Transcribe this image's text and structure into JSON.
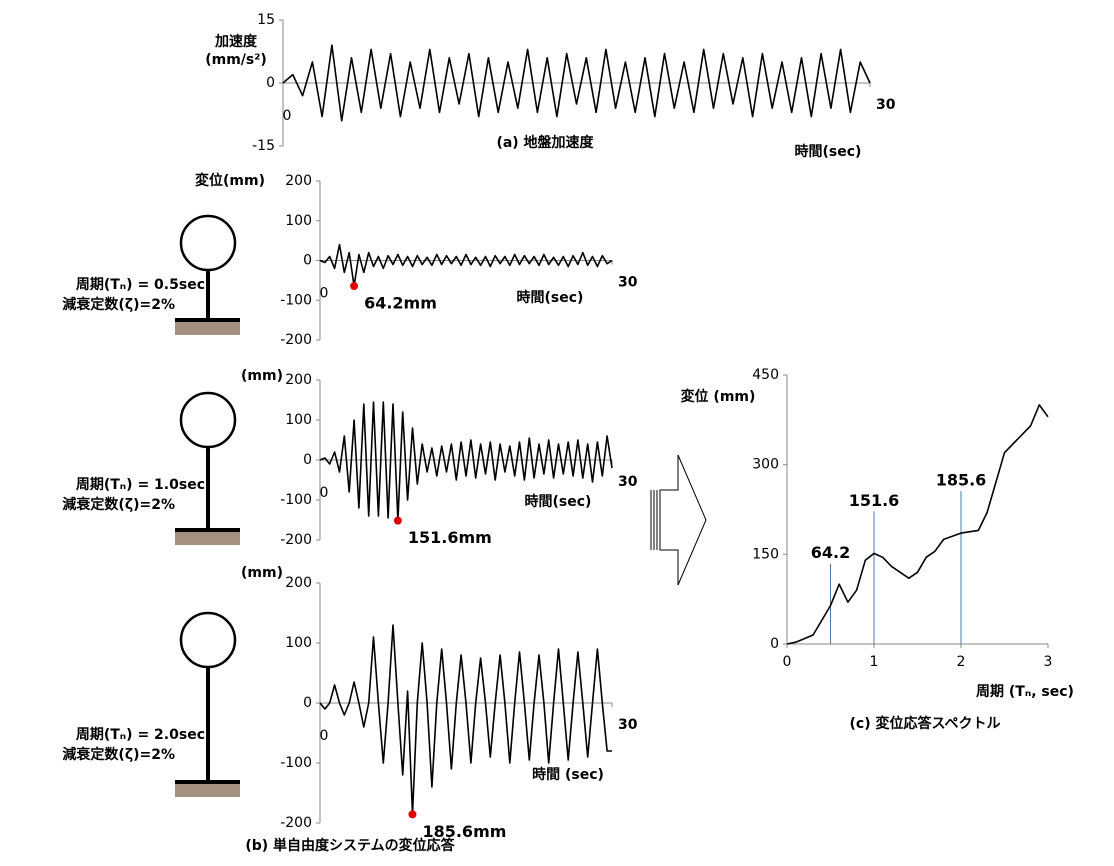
{
  "chart_data": [
    {
      "type": "line",
      "title": "(a) 地盤加速度",
      "y_label": [
        "加速度",
        "(mm/s²)"
      ],
      "x_label": "時間(sec)",
      "color": "#000000",
      "xlim": [
        0,
        30
      ],
      "xticks": [
        0,
        30
      ],
      "ylim": [
        -15,
        15
      ],
      "yticks": [
        15,
        0,
        -15
      ],
      "x": [
        0,
        0.5,
        1,
        1.5,
        2,
        2.5,
        3,
        3.5,
        4,
        4.5,
        5,
        5.5,
        6,
        6.5,
        7,
        7.5,
        8,
        8.5,
        9,
        9.5,
        10,
        10.5,
        11,
        11.5,
        12,
        12.5,
        13,
        13.5,
        14,
        14.5,
        15,
        15.5,
        16,
        16.5,
        17,
        17.5,
        18,
        18.5,
        19,
        19.5,
        20,
        20.5,
        21,
        21.5,
        22,
        22.5,
        23,
        23.5,
        24,
        24.5,
        25,
        25.5,
        26,
        26.5,
        27,
        27.5,
        28,
        28.5,
        29,
        29.5,
        30
      ],
      "values": [
        0,
        2,
        -3,
        5,
        -8,
        9,
        -9,
        6,
        -7,
        8,
        -6,
        7,
        -8,
        5,
        -6,
        8,
        -7,
        6,
        -5,
        7,
        -8,
        6,
        -7,
        5,
        -6,
        8,
        -7,
        6,
        -8,
        7,
        -5,
        6,
        -7,
        8,
        -6,
        5,
        -7,
        6,
        -8,
        7,
        -6,
        5,
        -7,
        8,
        -6,
        7,
        -5,
        6,
        -8,
        7,
        -6,
        5,
        -7,
        6,
        -8,
        7,
        -6,
        8,
        -7,
        5,
        0
      ]
    },
    {
      "type": "line",
      "y_label": "変位(mm)",
      "x_label": "時間(sec)",
      "color": "#000000",
      "xlim": [
        0,
        30
      ],
      "xticks": [
        0,
        30
      ],
      "ylim": [
        -200,
        200
      ],
      "yticks": [
        200,
        100,
        0,
        -100,
        -200
      ],
      "x": [
        0,
        0.5,
        1,
        1.5,
        2,
        2.5,
        3,
        3.5,
        4,
        4.5,
        5,
        5.5,
        6,
        6.5,
        7,
        7.5,
        8,
        8.5,
        9,
        9.5,
        10,
        10.5,
        11,
        11.5,
        12,
        12.5,
        13,
        13.5,
        14,
        14.5,
        15,
        15.5,
        16,
        16.5,
        17,
        17.5,
        18,
        18.5,
        19,
        19.5,
        20,
        20.5,
        21,
        21.5,
        22,
        22.5,
        23,
        23.5,
        24,
        24.5,
        25,
        25.5,
        26,
        26.5,
        27,
        27.5,
        28,
        28.5,
        29,
        29.5,
        30
      ],
      "values": [
        0,
        -5,
        10,
        -20,
        40,
        -30,
        20,
        -64.2,
        15,
        -30,
        20,
        -15,
        10,
        -20,
        12,
        -10,
        15,
        -12,
        10,
        -15,
        12,
        -10,
        8,
        -12,
        15,
        -10,
        12,
        -8,
        10,
        -12,
        15,
        -10,
        8,
        -12,
        10,
        -15,
        12,
        -8,
        10,
        -12,
        15,
        -10,
        12,
        -8,
        10,
        -12,
        15,
        -10,
        8,
        -12,
        10,
        -15,
        12,
        -10,
        20,
        -12,
        10,
        -15,
        12,
        -8,
        0
      ],
      "peak": {
        "x": 3.5,
        "y": -64.2,
        "label": "64.2mm",
        "color": "#e00000"
      },
      "system": {
        "period": "周期(Tₙ) = 0.5sec",
        "damping": "減衰定数(ζ)=2%"
      }
    },
    {
      "type": "line",
      "y_label": "(mm)",
      "x_label": "時間(sec)",
      "color": "#000000",
      "xlim": [
        0,
        30
      ],
      "xticks": [
        0,
        30
      ],
      "ylim": [
        -200,
        200
      ],
      "yticks": [
        200,
        100,
        0,
        -100,
        -200
      ],
      "x": [
        0,
        0.5,
        1,
        1.5,
        2,
        2.5,
        3,
        3.5,
        4,
        4.5,
        5,
        5.5,
        6,
        6.5,
        7,
        7.5,
        8,
        8.5,
        9,
        9.5,
        10,
        10.5,
        11,
        11.5,
        12,
        12.5,
        13,
        13.5,
        14,
        14.5,
        15,
        15.5,
        16,
        16.5,
        17,
        17.5,
        18,
        18.5,
        19,
        19.5,
        20,
        20.5,
        21,
        21.5,
        22,
        22.5,
        23,
        23.5,
        24,
        24.5,
        25,
        25.5,
        26,
        26.5,
        27,
        27.5,
        28,
        28.5,
        29,
        29.5,
        30
      ],
      "values": [
        0,
        5,
        -10,
        20,
        -30,
        60,
        -80,
        100,
        -120,
        140,
        -140,
        145,
        -140,
        145,
        -145,
        140,
        -151.6,
        120,
        -100,
        80,
        -60,
        40,
        -30,
        30,
        -40,
        35,
        -30,
        40,
        -50,
        45,
        -40,
        50,
        -45,
        40,
        -35,
        45,
        -50,
        40,
        -30,
        35,
        -40,
        45,
        -50,
        55,
        -45,
        40,
        -35,
        50,
        -45,
        40,
        -35,
        45,
        -40,
        50,
        -45,
        40,
        -55,
        45,
        -40,
        60,
        -20
      ],
      "peak": {
        "x": 8,
        "y": -151.6,
        "label": "151.6mm",
        "color": "#e00000"
      },
      "system": {
        "period": "周期(Tₙ) = 1.0sec",
        "damping": "減衰定数(ζ)=2%"
      }
    },
    {
      "type": "line",
      "y_label": "(mm)",
      "x_label": "時間 (sec)",
      "color": "#000000",
      "caption": "(b) 単自由度システムの変位応答",
      "xlim": [
        0,
        30
      ],
      "xticks": [
        0,
        30
      ],
      "ylim": [
        -200,
        200
      ],
      "yticks": [
        200,
        100,
        0,
        -100,
        -200
      ],
      "x": [
        0,
        0.5,
        1,
        1.5,
        2,
        2.5,
        3,
        3.5,
        4,
        4.5,
        5,
        5.5,
        6,
        6.5,
        7,
        7.5,
        8,
        8.5,
        9,
        9.5,
        10,
        10.5,
        11,
        11.5,
        12,
        12.5,
        13,
        13.5,
        14,
        14.5,
        15,
        15.5,
        16,
        16.5,
        17,
        17.5,
        18,
        18.5,
        19,
        19.5,
        20,
        20.5,
        21,
        21.5,
        22,
        22.5,
        23,
        23.5,
        24,
        24.5,
        25,
        25.5,
        26,
        26.5,
        27,
        27.5,
        28,
        28.5,
        29,
        29.5,
        30
      ],
      "values": [
        0,
        -10,
        0,
        30,
        0,
        -20,
        0,
        35,
        0,
        -40,
        0,
        110,
        0,
        -100,
        0,
        130,
        0,
        -120,
        20,
        -185.6,
        0,
        100,
        0,
        -140,
        0,
        90,
        0,
        -110,
        0,
        80,
        0,
        -100,
        0,
        75,
        0,
        -90,
        0,
        80,
        0,
        -100,
        0,
        85,
        0,
        -95,
        0,
        80,
        0,
        -100,
        0,
        90,
        0,
        -95,
        0,
        85,
        0,
        -90,
        0,
        90,
        0,
        -80,
        -80
      ],
      "peak": {
        "x": 9.5,
        "y": -185.6,
        "label": "185.6mm",
        "color": "#e00000"
      },
      "system": {
        "period": "周期(Tₙ) = 2.0sec",
        "damping": "減衰定数(ζ)=2%"
      }
    },
    {
      "type": "line",
      "title": "(c) 変位応答スペクトル",
      "y_label": "変位 (mm)",
      "x_label": "周期 (Tₙ, sec)",
      "color": "#000000",
      "xlim": [
        0,
        3
      ],
      "xticks": [
        0,
        1,
        2,
        3
      ],
      "ylim": [
        0,
        450
      ],
      "yticks": [
        0,
        150,
        300,
        450
      ],
      "x": [
        0,
        0.1,
        0.3,
        0.5,
        0.6,
        0.7,
        0.8,
        0.9,
        1.0,
        1.1,
        1.2,
        1.4,
        1.5,
        1.6,
        1.7,
        1.8,
        2.0,
        2.2,
        2.3,
        2.5,
        2.8,
        2.9,
        3.0
      ],
      "values": [
        0,
        3,
        15,
        64.2,
        100,
        70,
        90,
        140,
        151.6,
        145,
        130,
        110,
        120,
        145,
        155,
        175,
        185.6,
        190,
        220,
        320,
        365,
        400,
        380
      ],
      "annotations": [
        {
          "x": 0.5,
          "value": 64.2
        },
        {
          "x": 1,
          "value": 151.6
        },
        {
          "x": 2,
          "value": 185.6
        }
      ],
      "annotation_color": "#4a7aa8"
    }
  ]
}
